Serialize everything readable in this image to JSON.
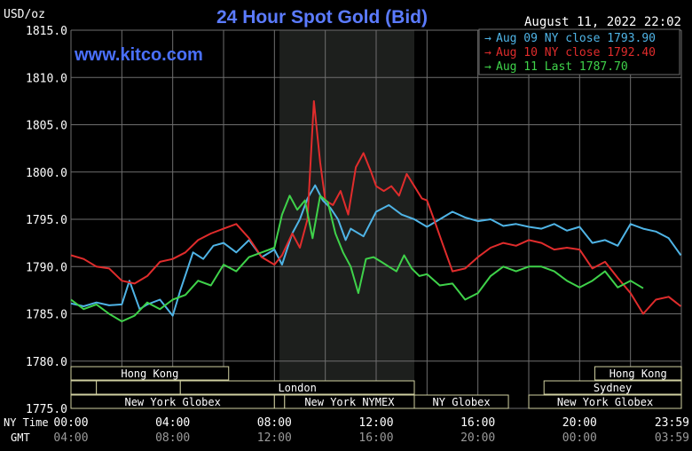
{
  "title": "24 Hour Spot Gold (Bid)",
  "watermark": "www.kitco.com",
  "unit_label": "USD/oz",
  "timestamp": "August 11, 2022 22:02",
  "row_labels": {
    "ny": "NY Time",
    "gmt": "GMT"
  },
  "colors": {
    "background": "#000000",
    "grid": "#6e6e6e",
    "axis_text": "#ffffff",
    "title": "#5b7bff",
    "session_text": "#ffffff",
    "session_border": "#cfcfa0",
    "shade": "#1d1f1d"
  },
  "chart_data": {
    "type": "line",
    "title": "24 Hour Spot Gold (Bid)",
    "ylabel": "USD/oz",
    "ylim": [
      1775,
      1815
    ],
    "xlim": [
      0,
      24
    ],
    "grid": true,
    "legend_position": "top-right",
    "y_ticks": [
      "1815.0",
      "1810.0",
      "1805.0",
      "1800.0",
      "1795.0",
      "1790.0",
      "1785.0",
      "1780.0",
      "1775.0"
    ],
    "x_ticks_ny": [
      "00:00",
      "04:00",
      "08:00",
      "12:00",
      "16:00",
      "20:00",
      "23:59"
    ],
    "x_ticks_gmt": [
      "04:00",
      "08:00",
      "12:00",
      "16:00",
      "20:00",
      "00:00",
      "03:59"
    ],
    "shaded_x_range": [
      8.2,
      13.5
    ],
    "series": [
      {
        "name": "Aug 09 NY close 1793.90",
        "color": "#4fb4e6",
        "x": [
          0.0,
          0.5,
          1.0,
          1.5,
          2.0,
          2.3,
          2.7,
          3.0,
          3.5,
          4.0,
          4.3,
          4.8,
          5.2,
          5.6,
          6.0,
          6.5,
          7.0,
          7.5,
          8.0,
          8.3,
          8.7,
          9.0,
          9.3,
          9.6,
          9.9,
          10.2,
          10.5,
          10.8,
          11.0,
          11.5,
          12.0,
          12.5,
          13.0,
          13.5,
          14.0,
          14.5,
          15.0,
          15.5,
          16.0,
          16.5,
          17.0,
          17.5,
          18.0,
          18.5,
          19.0,
          19.5,
          20.0,
          20.5,
          21.0,
          21.5,
          22.0,
          22.5,
          23.0,
          23.5,
          23.98
        ],
        "y": [
          1786.1,
          1785.8,
          1786.2,
          1785.9,
          1786.0,
          1788.5,
          1785.5,
          1786.0,
          1786.5,
          1784.8,
          1787.5,
          1791.5,
          1790.8,
          1792.2,
          1792.5,
          1791.5,
          1792.8,
          1791.0,
          1791.8,
          1790.2,
          1793.5,
          1795.0,
          1797.2,
          1798.6,
          1797.0,
          1796.2,
          1795.0,
          1792.8,
          1794.0,
          1793.2,
          1795.8,
          1796.5,
          1795.5,
          1795.0,
          1794.2,
          1795.0,
          1795.8,
          1795.2,
          1794.8,
          1795.0,
          1794.3,
          1794.5,
          1794.2,
          1794.0,
          1794.5,
          1793.8,
          1794.2,
          1792.5,
          1792.8,
          1792.2,
          1794.5,
          1794.0,
          1793.7,
          1793.0,
          1791.2
        ]
      },
      {
        "name": "Aug 10 NY close 1792.40",
        "color": "#e02c2c",
        "x": [
          0.0,
          0.5,
          1.0,
          1.5,
          2.0,
          2.5,
          3.0,
          3.5,
          4.0,
          4.5,
          5.0,
          5.5,
          6.0,
          6.5,
          7.0,
          7.5,
          8.0,
          8.3,
          8.7,
          9.0,
          9.3,
          9.55,
          9.8,
          10.0,
          10.3,
          10.6,
          10.9,
          11.2,
          11.5,
          11.8,
          12.0,
          12.3,
          12.6,
          12.9,
          13.2,
          13.5,
          13.8,
          14.0,
          14.3,
          14.6,
          15.0,
          15.5,
          16.0,
          16.5,
          17.0,
          17.5,
          18.0,
          18.5,
          19.0,
          19.5,
          20.0,
          20.5,
          21.0,
          21.5,
          22.0,
          22.5,
          23.0,
          23.5,
          23.98
        ],
        "y": [
          1791.2,
          1790.8,
          1790.0,
          1789.8,
          1788.5,
          1788.2,
          1789.0,
          1790.5,
          1790.8,
          1791.5,
          1792.8,
          1793.5,
          1794.0,
          1794.5,
          1793.0,
          1791.0,
          1790.2,
          1791.2,
          1793.5,
          1792.0,
          1795.0,
          1807.5,
          1801.0,
          1797.0,
          1796.5,
          1798.0,
          1795.5,
          1800.5,
          1802.0,
          1800.0,
          1798.5,
          1798.0,
          1798.5,
          1797.5,
          1799.8,
          1798.5,
          1797.2,
          1797.0,
          1794.8,
          1792.5,
          1789.5,
          1789.8,
          1791.0,
          1792.0,
          1792.5,
          1792.2,
          1792.8,
          1792.5,
          1791.8,
          1792.0,
          1791.8,
          1789.8,
          1790.5,
          1788.8,
          1787.2,
          1785.0,
          1786.5,
          1786.8,
          1785.8
        ]
      },
      {
        "name": "Aug 11 Last 1787.70",
        "color": "#3fd24a",
        "x": [
          0.0,
          0.5,
          1.0,
          1.5,
          2.0,
          2.5,
          3.0,
          3.5,
          4.0,
          4.5,
          5.0,
          5.5,
          6.0,
          6.5,
          7.0,
          7.5,
          8.0,
          8.3,
          8.6,
          8.9,
          9.2,
          9.5,
          9.8,
          10.1,
          10.4,
          10.7,
          11.0,
          11.3,
          11.6,
          11.9,
          12.2,
          12.5,
          12.8,
          13.1,
          13.4,
          13.7,
          14.0,
          14.5,
          15.0,
          15.5,
          16.0,
          16.5,
          17.0,
          17.5,
          18.0,
          18.5,
          19.0,
          19.5,
          20.0,
          20.5,
          21.0,
          21.5,
          22.0,
          22.5
        ],
        "y": [
          1786.5,
          1785.5,
          1786.0,
          1785.0,
          1784.2,
          1784.8,
          1786.2,
          1785.5,
          1786.5,
          1787.0,
          1788.5,
          1788.0,
          1790.2,
          1789.5,
          1791.0,
          1791.5,
          1792.0,
          1795.5,
          1797.5,
          1796.0,
          1797.0,
          1793.0,
          1797.5,
          1796.8,
          1793.5,
          1791.5,
          1790.0,
          1787.2,
          1790.8,
          1791.0,
          1790.5,
          1790.0,
          1789.5,
          1791.2,
          1789.8,
          1789.0,
          1789.2,
          1788.0,
          1788.2,
          1786.5,
          1787.2,
          1789.0,
          1790.0,
          1789.5,
          1790.0,
          1790.0,
          1789.5,
          1788.5,
          1787.8,
          1788.5,
          1789.5,
          1787.8,
          1788.5,
          1787.7
        ]
      }
    ]
  },
  "sessions": [
    {
      "label": "Hong Kong",
      "start": 0.0,
      "end": 6.2,
      "row": 0
    },
    {
      "label": "",
      "start": 0.0,
      "end": 1.0,
      "row": 1
    },
    {
      "label": "",
      "start": 1.0,
      "end": 4.3,
      "row": 1
    },
    {
      "label": "London",
      "start": 4.3,
      "end": 13.5,
      "row": 1
    },
    {
      "label": "New York Globex",
      "start": 0.0,
      "end": 8.0,
      "row": 2
    },
    {
      "label": "",
      "start": 8.0,
      "end": 8.4,
      "row": 2
    },
    {
      "label": "New York NYMEX",
      "start": 8.4,
      "end": 13.5,
      "row": 2
    },
    {
      "label": "NY Globex",
      "start": 13.5,
      "end": 17.2,
      "row": 2
    },
    {
      "label": "Hong Kong",
      "start": 20.6,
      "end": 24.0,
      "row": 0
    },
    {
      "label": "Sydney",
      "start": 18.6,
      "end": 24.0,
      "row": 1
    },
    {
      "label": "New York Globex",
      "start": 18.0,
      "end": 24.0,
      "row": 2
    }
  ]
}
